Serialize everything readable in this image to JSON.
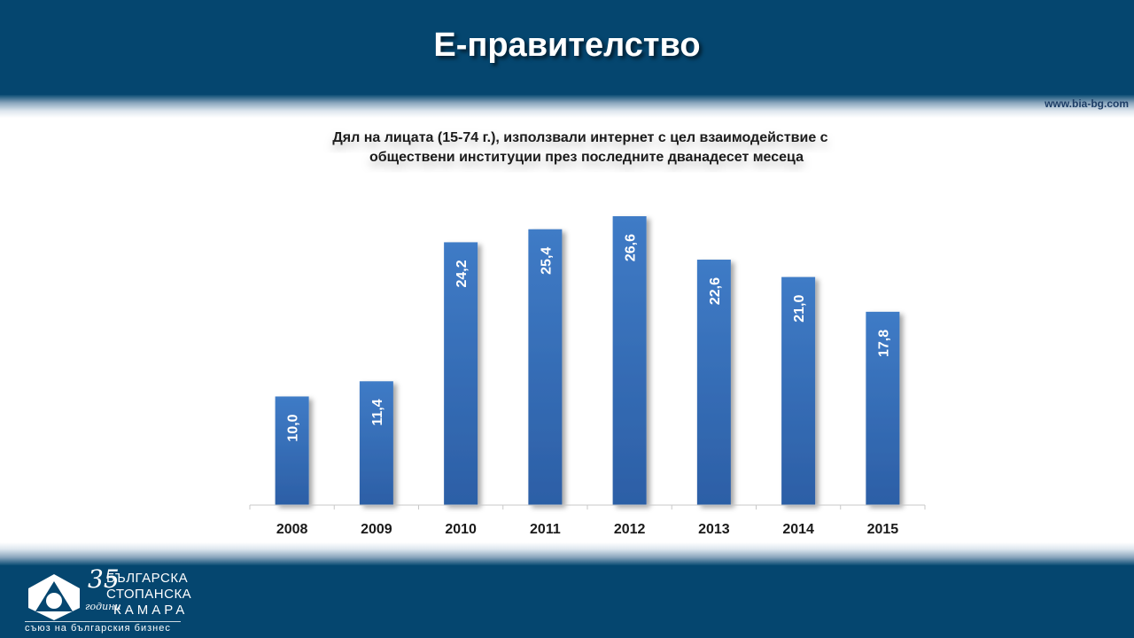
{
  "slide": {
    "title": "Е-правителство",
    "website": "www.bia-bg.com"
  },
  "logo": {
    "number": "35",
    "years": "години",
    "line1": "БЪЛГАРСКА",
    "line2": "СТОПАНСКА",
    "line3": "КАМАРА",
    "tagline": "съюз на българския бизнес"
  },
  "colors": {
    "band": "#05466f",
    "bar": "#3a73bd",
    "bar_dark": "#2a5a9e",
    "text_dark": "#1a1a1a"
  },
  "chart_data": {
    "type": "bar",
    "title_lines": [
      "Дял на лицата (15-74 г.), използвали интернет с цел взаимодействие с",
      "обществени институции през последните дванадесет месеца"
    ],
    "categories": [
      "2008",
      "2009",
      "2010",
      "2011",
      "2012",
      "2013",
      "2014",
      "2015"
    ],
    "values": [
      10.0,
      11.4,
      24.2,
      25.4,
      26.6,
      22.6,
      21.0,
      17.8
    ],
    "value_labels": [
      "10,0",
      "11,4",
      "24,2",
      "25,4",
      "26,6",
      "22,6",
      "21,0",
      "17,8"
    ],
    "xlabel": "",
    "ylabel": "",
    "ylim": [
      0,
      26.6
    ],
    "grid": false,
    "legend": false
  }
}
